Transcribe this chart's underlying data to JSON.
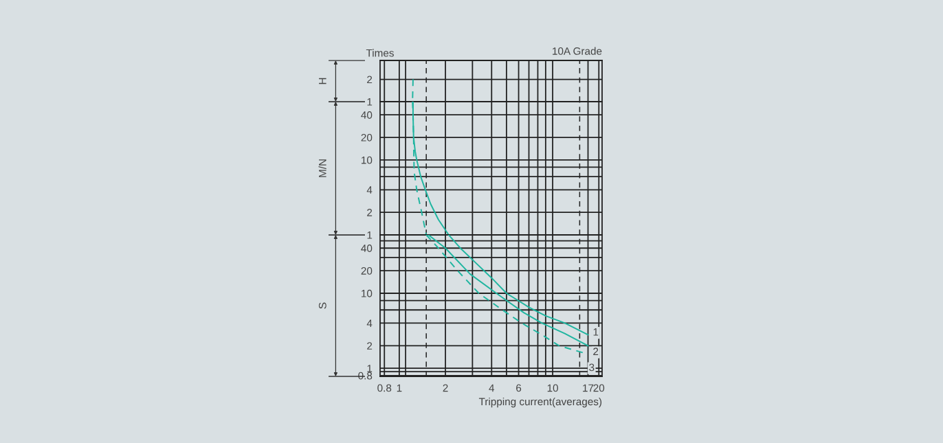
{
  "chart_data": [
    {
      "type": "line",
      "title": "10A Grade",
      "ylabel": "H",
      "annotations": [
        "Times"
      ],
      "log": "xy",
      "grid": true,
      "tick_labels": "y",
      "xlim": [
        0.75,
        21
      ],
      "ylim": [
        1,
        3.6
      ],
      "xticks": [
        0.8,
        1,
        {
          "value": 1.1,
          "label": null
        },
        2,
        {
          "value": 3,
          "label": null
        },
        4,
        {
          "value": 5,
          "label": null
        },
        6,
        {
          "value": 7,
          "label": null
        },
        {
          "value": 8,
          "label": null
        },
        {
          "value": 9,
          "label": null
        },
        10,
        17,
        20
      ],
      "yticks": [
        1,
        2
      ],
      "ref_lines": [
        {
          "axis": "x",
          "value": 1.5,
          "line_style": "dashed",
          "color": "#222222"
        },
        {
          "axis": "x",
          "value": 15,
          "line_style": "dashed",
          "color": "#222222"
        }
      ],
      "series": [
        {
          "color": "#1fb5a0",
          "line_style": "dashed",
          "x": [
            1.23,
            1.225,
            1.22
          ],
          "values": [
            2,
            1.4,
            1
          ]
        }
      ]
    },
    {
      "type": "line",
      "ylabel": "M/N",
      "log": "xy",
      "grid": true,
      "tick_labels": "y",
      "xlim": [
        0.75,
        21
      ],
      "ylim": [
        1,
        60
      ],
      "xticks": [
        0.8,
        1,
        {
          "value": 1.1,
          "label": null
        },
        2,
        {
          "value": 3,
          "label": null
        },
        4,
        {
          "value": 5,
          "label": null
        },
        6,
        {
          "value": 7,
          "label": null
        },
        {
          "value": 8,
          "label": null
        },
        {
          "value": 9,
          "label": null
        },
        10,
        17,
        20
      ],
      "yticks": [
        1,
        2,
        4,
        {
          "value": 6,
          "label": null
        },
        {
          "value": 8,
          "label": null
        },
        10,
        20,
        40
      ],
      "ref_lines": [
        {
          "axis": "x",
          "value": 1.5,
          "line_style": "dashed",
          "color": "#222222"
        },
        {
          "axis": "x",
          "value": 15,
          "line_style": "dashed",
          "color": "#222222"
        }
      ],
      "series": [
        {
          "color": "#1fb5a0",
          "line_style": "solid",
          "x": [
            1.23,
            1.23,
            1.24,
            1.27,
            1.3,
            1.38,
            1.48,
            1.6,
            1.8,
            2.1
          ],
          "values": [
            60,
            40,
            20,
            13,
            10,
            6,
            4,
            2.6,
            1.6,
            1
          ]
        },
        {
          "color": "#1fb5a0",
          "line_style": "dashed",
          "x": [
            1.22,
            1.23,
            1.24,
            1.25,
            1.3,
            1.4,
            1.5
          ],
          "values": [
            60,
            40,
            20,
            7,
            4,
            2,
            1
          ]
        }
      ]
    },
    {
      "type": "line",
      "ylabel": "S",
      "xlabel": "Tripping current(averages)",
      "log": "xy",
      "grid": true,
      "xlim": [
        0.75,
        21
      ],
      "ylim": [
        0.78,
        60
      ],
      "xticks": [
        0.8,
        1,
        {
          "value": 1.1,
          "label": null
        },
        2,
        {
          "value": 3,
          "label": null
        },
        4,
        {
          "value": 5,
          "label": null
        },
        6,
        {
          "value": 7,
          "label": null
        },
        {
          "value": 8,
          "label": null
        },
        {
          "value": 9,
          "label": null
        },
        10,
        17,
        20
      ],
      "yticks": [
        0.8,
        {
          "value": 0.9,
          "label": null
        },
        1,
        2,
        4,
        {
          "value": 6,
          "label": null
        },
        {
          "value": 8,
          "label": null
        },
        10,
        20,
        {
          "value": 30,
          "label": null
        },
        40,
        {
          "value": 50,
          "label": null
        }
      ],
      "ref_lines": [
        {
          "axis": "x",
          "value": 1.5,
          "line_style": "dashed",
          "color": "#222222"
        },
        {
          "axis": "x",
          "value": 15,
          "line_style": "dashed",
          "color": "#222222"
        }
      ],
      "series": [
        {
          "name": "1",
          "color": "#1fb5a0",
          "line_style": "solid",
          "x": [
            2.1,
            2.5,
            3,
            4,
            5,
            7,
            9,
            12,
            17
          ],
          "values": [
            60,
            40,
            28,
            16,
            10,
            6.5,
            5,
            4,
            2.8
          ]
        },
        {
          "name": "2",
          "color": "#1fb5a0",
          "line_style": "solid",
          "x": [
            1.55,
            2,
            2.9,
            4.3,
            5,
            6.5,
            8.5,
            12,
            17
          ],
          "values": [
            60,
            40,
            18,
            10,
            8,
            5.5,
            4,
            2.9,
            2
          ]
        },
        {
          "name": "3",
          "color": "#1fb5a0",
          "line_style": "dashed",
          "x": [
            1.5,
            1.8,
            2.4,
            3.3,
            4.7,
            6.3,
            8.5,
            11,
            16
          ],
          "values": [
            60,
            40,
            20,
            10,
            6,
            4,
            2.8,
            2,
            1.6
          ]
        }
      ]
    }
  ]
}
